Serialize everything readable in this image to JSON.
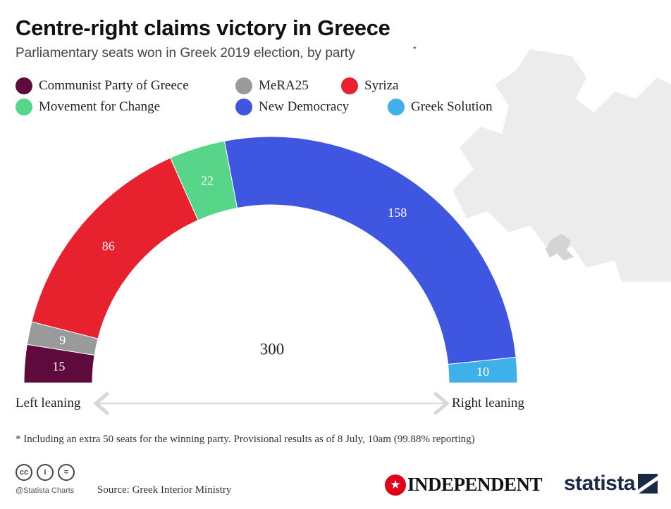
{
  "header": {
    "title": "Centre-right claims victory in Greece",
    "subtitle": "Parliamentary seats won in Greek 2019 election, by party",
    "subtitle_asterisk": "*"
  },
  "legend": [
    {
      "label": "Communist Party of Greece",
      "color": "#5e0a3c"
    },
    {
      "label": "MeRA25",
      "color": "#9a9a9a"
    },
    {
      "label": "Syriza",
      "color": "#e8212f"
    },
    {
      "label": "Movement for Change",
      "color": "#57d68a"
    },
    {
      "label": "New Democracy",
      "color": "#3f56e0"
    },
    {
      "label": "Greek Solution",
      "color": "#3fb0ea"
    }
  ],
  "chart_data": {
    "type": "pie",
    "title": "Centre-right claims victory in Greece",
    "subtitle": "Parliamentary seats won in Greek 2019 election, by party",
    "categories": [
      "Communist Party of Greece",
      "MeRA25",
      "Syriza",
      "Movement for Change",
      "New Democracy",
      "Greek Solution"
    ],
    "values": [
      15,
      9,
      86,
      22,
      158,
      10
    ],
    "colors": [
      "#5e0a3c",
      "#9a9a9a",
      "#e8212f",
      "#57d68a",
      "#3f56e0",
      "#3fb0ea"
    ],
    "total": 300,
    "total_label": "300",
    "left_label": "Left leaning",
    "right_label": "Right leaning"
  },
  "footnote": "* Including an extra 50 seats for the winning party. Provisional results as of 8 July, 10am (99.88% reporting)",
  "footer": {
    "cc_icons": [
      "cc-icon",
      "person-icon",
      "equals-icon"
    ],
    "cc_glyphs": [
      "cc",
      "i",
      "="
    ],
    "statista_charts": "@Statista Charts",
    "source": "Source: Greek Interior Ministry",
    "independent_logo": "INDEPENDENT",
    "statista_logo": "statista"
  }
}
